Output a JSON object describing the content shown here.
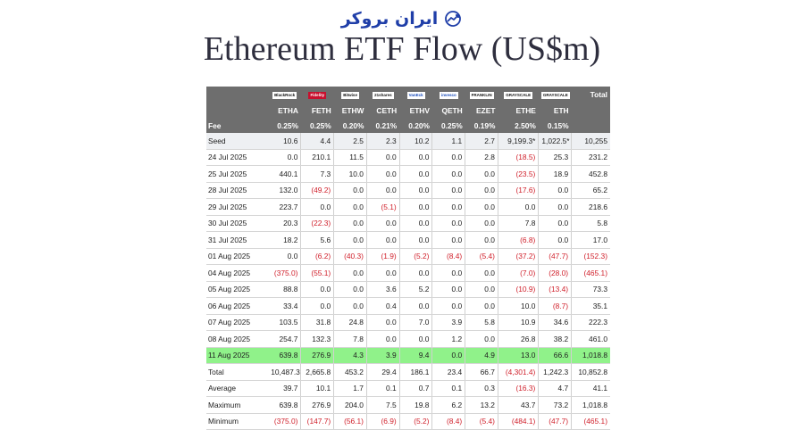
{
  "brand": {
    "text": "ایران بروکر",
    "icon": "trend-up-icon",
    "color": "#1f3ea8"
  },
  "title": "Ethereum ETF Flow (US$m)",
  "table": {
    "logos": [
      "BlackRock",
      "Fidelity",
      "Bitwise",
      "21shares",
      "VanEck",
      "invesco",
      "FRANKLIN",
      "GRAYSCALE",
      "GRAYSCALE"
    ],
    "total_label": "Total",
    "tickers": [
      "ETHA",
      "FETH",
      "ETHW",
      "CETH",
      "ETHV",
      "QETH",
      "EZET",
      "ETHE",
      "ETH"
    ],
    "fee_label": "Fee",
    "fees": [
      "0.25%",
      "0.25%",
      "0.20%",
      "0.21%",
      "0.20%",
      "0.25%",
      "0.19%",
      "2.50%",
      "0.15%"
    ],
    "rows": [
      {
        "label": "Seed",
        "values": [
          "10.6",
          "4.4",
          "2.5",
          "2.3",
          "10.2",
          "1.1",
          "2.7",
          "9,199.3*",
          "1,022.5*",
          "10,255"
        ],
        "style": "seed"
      },
      {
        "label": "24 Jul 2025",
        "values": [
          "0.0",
          "210.1",
          "11.5",
          "0.0",
          "0.0",
          "0.0",
          "2.8",
          "(18.5)",
          "25.3",
          "231.2"
        ]
      },
      {
        "label": "25 Jul 2025",
        "values": [
          "440.1",
          "7.3",
          "10.0",
          "0.0",
          "0.0",
          "0.0",
          "0.0",
          "(23.5)",
          "18.9",
          "452.8"
        ]
      },
      {
        "label": "28 Jul 2025",
        "values": [
          "132.0",
          "(49.2)",
          "0.0",
          "0.0",
          "0.0",
          "0.0",
          "0.0",
          "(17.6)",
          "0.0",
          "65.2"
        ]
      },
      {
        "label": "29 Jul 2025",
        "values": [
          "223.7",
          "0.0",
          "0.0",
          "(5.1)",
          "0.0",
          "0.0",
          "0.0",
          "0.0",
          "0.0",
          "218.6"
        ]
      },
      {
        "label": "30 Jul 2025",
        "values": [
          "20.3",
          "(22.3)",
          "0.0",
          "0.0",
          "0.0",
          "0.0",
          "0.0",
          "7.8",
          "0.0",
          "5.8"
        ]
      },
      {
        "label": "31 Jul 2025",
        "values": [
          "18.2",
          "5.6",
          "0.0",
          "0.0",
          "0.0",
          "0.0",
          "0.0",
          "(6.8)",
          "0.0",
          "17.0"
        ]
      },
      {
        "label": "01 Aug 2025",
        "values": [
          "0.0",
          "(6.2)",
          "(40.3)",
          "(1.9)",
          "(5.2)",
          "(8.4)",
          "(5.4)",
          "(37.2)",
          "(47.7)",
          "(152.3)"
        ]
      },
      {
        "label": "04 Aug 2025",
        "values": [
          "(375.0)",
          "(55.1)",
          "0.0",
          "0.0",
          "0.0",
          "0.0",
          "0.0",
          "(7.0)",
          "(28.0)",
          "(465.1)"
        ]
      },
      {
        "label": "05 Aug 2025",
        "values": [
          "88.8",
          "0.0",
          "0.0",
          "3.6",
          "5.2",
          "0.0",
          "0.0",
          "(10.9)",
          "(13.4)",
          "73.3"
        ]
      },
      {
        "label": "06 Aug 2025",
        "values": [
          "33.4",
          "0.0",
          "0.0",
          "0.4",
          "0.0",
          "0.0",
          "0.0",
          "10.0",
          "(8.7)",
          "35.1"
        ]
      },
      {
        "label": "07 Aug 2025",
        "values": [
          "103.5",
          "31.8",
          "24.8",
          "0.0",
          "7.0",
          "3.9",
          "5.8",
          "10.9",
          "34.6",
          "222.3"
        ]
      },
      {
        "label": "08 Aug 2025",
        "values": [
          "254.7",
          "132.3",
          "7.8",
          "0.0",
          "0.0",
          "1.2",
          "0.0",
          "26.8",
          "38.2",
          "461.0"
        ]
      },
      {
        "label": "11 Aug 2025",
        "values": [
          "639.8",
          "276.9",
          "4.3",
          "3.9",
          "9.4",
          "0.0",
          "4.9",
          "13.0",
          "66.6",
          "1,018.8"
        ],
        "style": "hl"
      },
      {
        "label": "Total",
        "values": [
          "10,487.3",
          "2,665.8",
          "453.2",
          "29.4",
          "186.1",
          "23.4",
          "66.7",
          "(4,301.4)",
          "1,242.3",
          "10,852.8"
        ]
      },
      {
        "label": "Average",
        "values": [
          "39.7",
          "10.1",
          "1.7",
          "0.1",
          "0.7",
          "0.1",
          "0.3",
          "(16.3)",
          "4.7",
          "41.1"
        ]
      },
      {
        "label": "Maximum",
        "values": [
          "639.8",
          "276.9",
          "204.0",
          "7.5",
          "19.8",
          "6.2",
          "13.2",
          "43.7",
          "73.2",
          "1,018.8"
        ]
      },
      {
        "label": "Minimum",
        "values": [
          "(375.0)",
          "(147.7)",
          "(56.1)",
          "(6.9)",
          "(5.2)",
          "(8.4)",
          "(5.4)",
          "(484.1)",
          "(47.7)",
          "(465.1)"
        ]
      }
    ]
  },
  "colors": {
    "header_bg": "#6e6e6e",
    "highlight_row": "#90f28a",
    "negative": "#d01f2a",
    "seed_row": "#eef0f3"
  }
}
